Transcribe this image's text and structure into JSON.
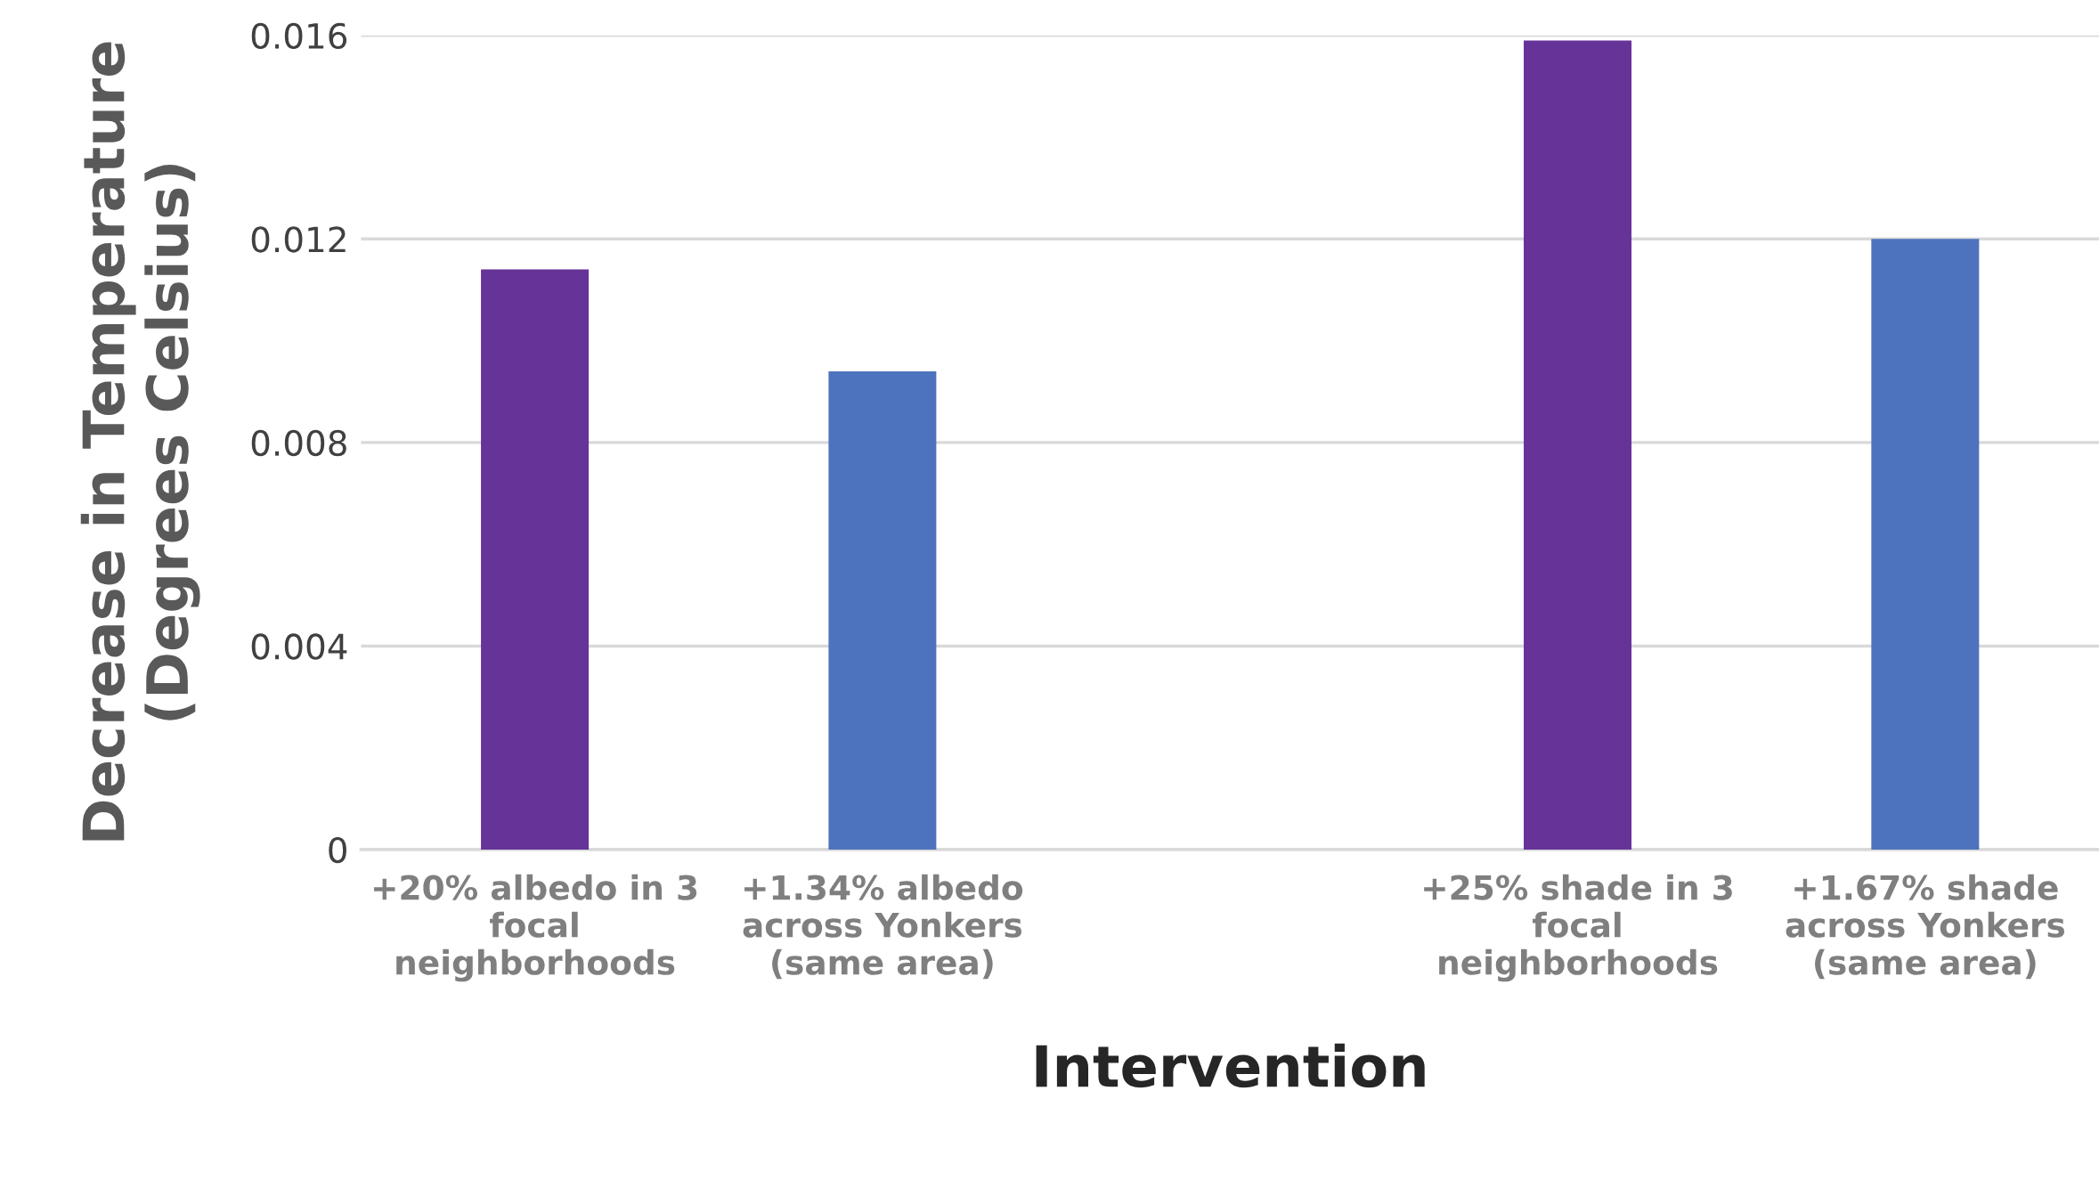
{
  "chart_data": {
    "type": "bar",
    "xlabel": "Intervention",
    "ylabel": "Decrease in Temperature\n(Degrees Celsius)",
    "categories": [
      "+20% albedo in 3\nfocal\nneighborhoods",
      "+1.34% albedo\nacross Yonkers\n(same area)",
      null,
      "+25% shade in 3\nfocal\nneighborhoods",
      "+1.67% shade\nacross Yonkers\n(same area)"
    ],
    "values": [
      0.0114,
      0.0094,
      null,
      0.0159,
      0.012
    ],
    "colors": [
      "#663399",
      "#4e73be",
      "#4e73be",
      "#663399",
      "#4e73be"
    ],
    "ylim": [
      0,
      0.016
    ],
    "yticks": [
      0,
      0.004,
      0.008,
      0.012,
      0.016
    ],
    "grid": "y",
    "legend": false
  }
}
